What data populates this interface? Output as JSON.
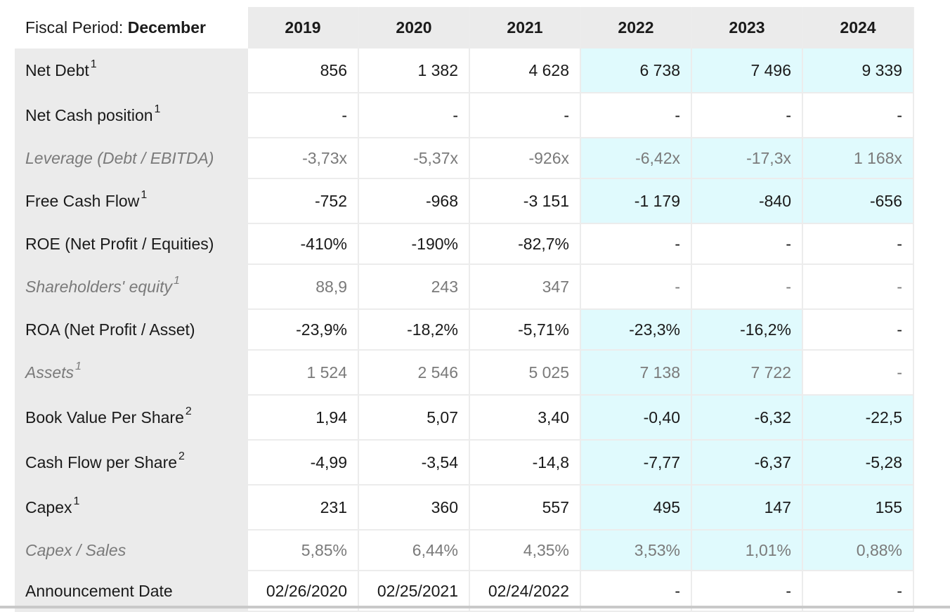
{
  "header": {
    "fiscal_label": "Fiscal Period:",
    "fiscal_value": "December",
    "years": [
      "2019",
      "2020",
      "2021",
      "2022",
      "2023",
      "2024"
    ]
  },
  "colors": {
    "estimate_bg": "#e0fafd",
    "label_bg": "#ebebeb",
    "muted_text": "#7a7a7a"
  },
  "rows": [
    {
      "label": "Net Debt",
      "sup": "1",
      "sub": false,
      "values": [
        "856",
        "1 382",
        "4 628",
        "6 738",
        "7 496",
        "9 339"
      ],
      "estimate": [
        false,
        false,
        false,
        true,
        true,
        true
      ]
    },
    {
      "label": "Net Cash position",
      "sup": "1",
      "sub": false,
      "values": [
        "-",
        "-",
        "-",
        "-",
        "-",
        "-"
      ],
      "estimate": [
        false,
        false,
        false,
        false,
        false,
        false
      ]
    },
    {
      "label": "Leverage (Debt / EBITDA)",
      "sup": "",
      "sub": true,
      "values": [
        "-3,73x",
        "-5,37x",
        "-926x",
        "-6,42x",
        "-17,3x",
        "1 168x"
      ],
      "estimate": [
        false,
        false,
        false,
        true,
        true,
        true
      ]
    },
    {
      "label": "Free Cash Flow",
      "sup": "1",
      "sub": false,
      "values": [
        "-752",
        "-968",
        "-3 151",
        "-1 179",
        "-840",
        "-656"
      ],
      "estimate": [
        false,
        false,
        false,
        true,
        true,
        true
      ]
    },
    {
      "label": "ROE (Net Profit / Equities)",
      "sup": "",
      "sub": false,
      "values": [
        "-410%",
        "-190%",
        "-82,7%",
        "-",
        "-",
        "-"
      ],
      "estimate": [
        false,
        false,
        false,
        false,
        false,
        false
      ]
    },
    {
      "label": "Shareholders' equity",
      "sup": "1",
      "sub": true,
      "values": [
        "88,9",
        "243",
        "347",
        "-",
        "-",
        "-"
      ],
      "estimate": [
        false,
        false,
        false,
        false,
        false,
        false
      ]
    },
    {
      "label": "ROA (Net Profit / Asset)",
      "sup": "",
      "sub": false,
      "values": [
        "-23,9%",
        "-18,2%",
        "-5,71%",
        "-23,3%",
        "-16,2%",
        "-"
      ],
      "estimate": [
        false,
        false,
        false,
        true,
        true,
        false
      ]
    },
    {
      "label": "Assets",
      "sup": "1",
      "sub": true,
      "values": [
        "1 524",
        "2 546",
        "5 025",
        "7 138",
        "7 722",
        "-"
      ],
      "estimate": [
        false,
        false,
        false,
        true,
        true,
        false
      ]
    },
    {
      "label": "Book Value Per Share",
      "sup": "2",
      "sub": false,
      "values": [
        "1,94",
        "5,07",
        "3,40",
        "-0,40",
        "-6,32",
        "-22,5"
      ],
      "estimate": [
        false,
        false,
        false,
        true,
        true,
        true
      ]
    },
    {
      "label": "Cash Flow per Share",
      "sup": "2",
      "sub": false,
      "values": [
        "-4,99",
        "-3,54",
        "-14,8",
        "-7,77",
        "-6,37",
        "-5,28"
      ],
      "estimate": [
        false,
        false,
        false,
        true,
        true,
        true
      ]
    },
    {
      "label": "Capex",
      "sup": "1",
      "sub": false,
      "values": [
        "231",
        "360",
        "557",
        "495",
        "147",
        "155"
      ],
      "estimate": [
        false,
        false,
        false,
        true,
        true,
        true
      ]
    },
    {
      "label": "Capex / Sales",
      "sup": "",
      "sub": true,
      "values": [
        "5,85%",
        "6,44%",
        "4,35%",
        "3,53%",
        "1,01%",
        "0,88%"
      ],
      "estimate": [
        false,
        false,
        false,
        true,
        true,
        true
      ]
    },
    {
      "label": "Announcement Date",
      "sup": "",
      "sub": false,
      "values": [
        "02/26/2020",
        "02/25/2021",
        "02/24/2022",
        "-",
        "-",
        "-"
      ],
      "estimate": [
        false,
        false,
        false,
        false,
        false,
        false
      ]
    }
  ]
}
